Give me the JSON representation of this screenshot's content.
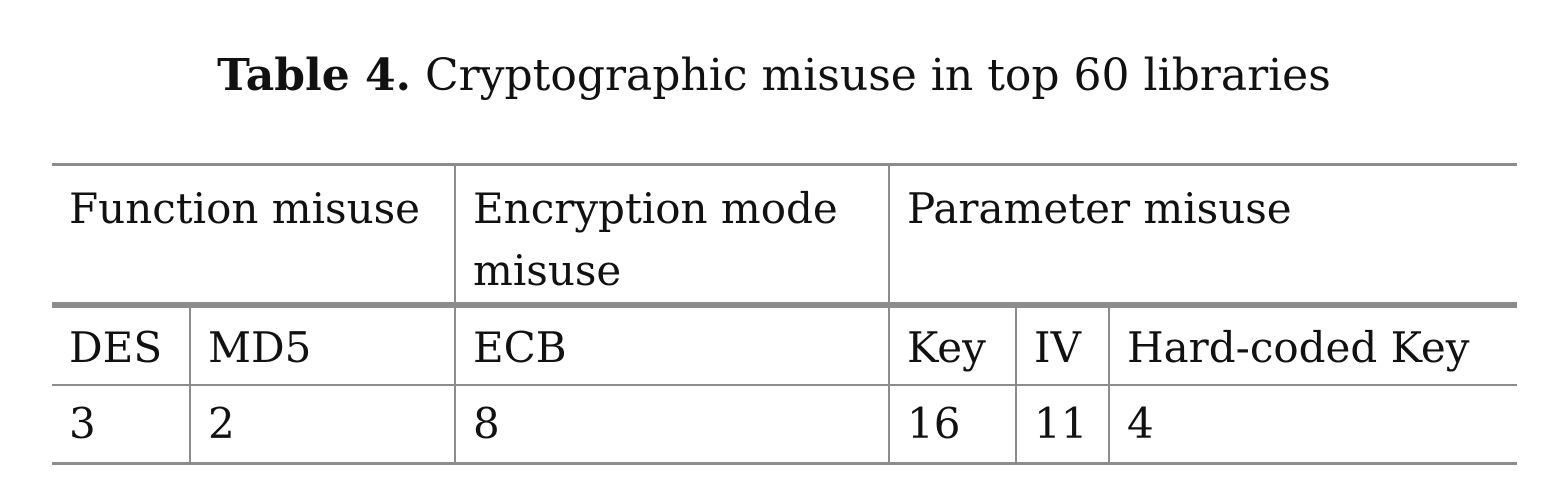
{
  "caption": {
    "label": "Table 4.",
    "text": "Cryptographic misuse in top 60 libraries"
  },
  "table": {
    "groups": [
      {
        "label": "Function misuse",
        "span": 2
      },
      {
        "label": "Encryption mode misuse",
        "span": 1
      },
      {
        "label": "Parameter misuse",
        "span": 3
      }
    ],
    "columns": [
      "DES",
      "MD5",
      "ECB",
      "Key",
      "IV",
      "Hard-coded Key"
    ],
    "values": [
      "3",
      "2",
      "8",
      "16",
      "11",
      "4"
    ]
  }
}
